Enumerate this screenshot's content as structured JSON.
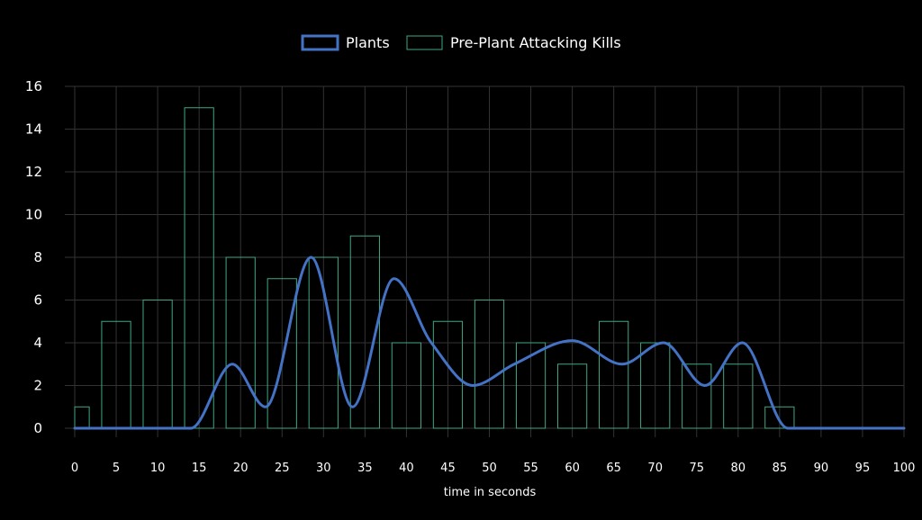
{
  "chart_data": {
    "type": "bar",
    "title": "",
    "xlabel": "time in seconds",
    "ylabel": "",
    "xlim": [
      0,
      100
    ],
    "ylim": [
      0,
      16
    ],
    "x_ticks": [
      0,
      5,
      10,
      15,
      20,
      25,
      30,
      35,
      40,
      45,
      50,
      55,
      60,
      65,
      70,
      75,
      80,
      85,
      90,
      95,
      100
    ],
    "y_ticks": [
      0,
      2,
      4,
      6,
      8,
      10,
      12,
      14,
      16
    ],
    "grid": true,
    "legend_position": "top-center",
    "series": [
      {
        "name": "Plants",
        "type": "line",
        "smooth": true,
        "color": "#4472c4",
        "points": [
          {
            "x": 0,
            "y": 0
          },
          {
            "x": 14,
            "y": 0
          },
          {
            "x": 19,
            "y": 3
          },
          {
            "x": 23,
            "y": 1
          },
          {
            "x": 28.5,
            "y": 8
          },
          {
            "x": 33.5,
            "y": 1
          },
          {
            "x": 38.5,
            "y": 7
          },
          {
            "x": 43,
            "y": 4
          },
          {
            "x": 48,
            "y": 2
          },
          {
            "x": 53,
            "y": 3
          },
          {
            "x": 60,
            "y": 4.1
          },
          {
            "x": 66,
            "y": 3
          },
          {
            "x": 71,
            "y": 4
          },
          {
            "x": 76,
            "y": 2
          },
          {
            "x": 80.5,
            "y": 4
          },
          {
            "x": 86,
            "y": 0
          },
          {
            "x": 100,
            "y": 0
          }
        ]
      },
      {
        "name": "Pre-Plant Attacking Kills",
        "type": "bar",
        "color": "#3ea883",
        "bar_width": 3.5,
        "bars": [
          {
            "x": 0,
            "y": 1
          },
          {
            "x": 5,
            "y": 5
          },
          {
            "x": 10,
            "y": 6
          },
          {
            "x": 15,
            "y": 15
          },
          {
            "x": 20,
            "y": 8
          },
          {
            "x": 25,
            "y": 7
          },
          {
            "x": 30,
            "y": 8
          },
          {
            "x": 35,
            "y": 9
          },
          {
            "x": 40,
            "y": 4
          },
          {
            "x": 45,
            "y": 5
          },
          {
            "x": 50,
            "y": 6
          },
          {
            "x": 55,
            "y": 4
          },
          {
            "x": 60,
            "y": 3
          },
          {
            "x": 65,
            "y": 5
          },
          {
            "x": 70,
            "y": 4
          },
          {
            "x": 75,
            "y": 3
          },
          {
            "x": 80,
            "y": 3
          },
          {
            "x": 85,
            "y": 1
          }
        ]
      }
    ]
  }
}
